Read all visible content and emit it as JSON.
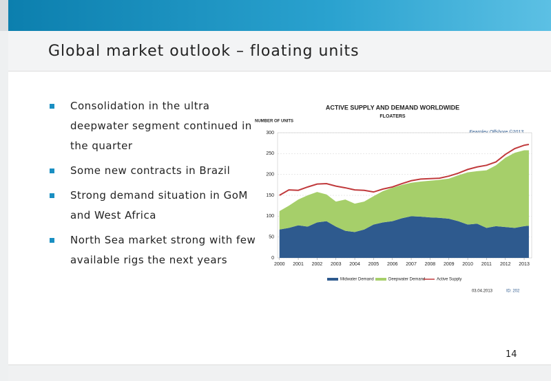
{
  "slide": {
    "title": "Global market outlook – floating units",
    "bullets": [
      "Consolidation in the ultra deepwater segment continued in the quarter",
      "Some new contracts in Brazil",
      "Strong demand situation in GoM and West Africa",
      "North Sea market strong with few available rigs the next years"
    ],
    "page_number": "14"
  },
  "chart_data": {
    "type": "stacked-area",
    "title": "ACTIVE SUPPLY AND DEMAND WORLDWIDE",
    "subtitle": "FLOATERS",
    "y_label": "NUMBER OF UNITS",
    "annotations": [
      "Fearnley Offshore ©2013",
      "03.04.2013",
      "ID: 202"
    ],
    "x": [
      2000,
      2000.5,
      2001,
      2001.5,
      2002,
      2002.5,
      2003,
      2003.5,
      2004,
      2004.5,
      2005,
      2005.5,
      2006,
      2006.5,
      2007,
      2007.5,
      2008,
      2008.5,
      2009,
      2009.5,
      2010,
      2010.5,
      2011,
      2011.5,
      2012,
      2012.5,
      2013,
      2013.25
    ],
    "series": [
      {
        "name": "Midwater Demand",
        "color": "#2e5a8e",
        "kind": "area",
        "values": [
          68,
          72,
          78,
          75,
          85,
          88,
          75,
          65,
          62,
          68,
          80,
          85,
          88,
          95,
          100,
          99,
          97,
          96,
          94,
          88,
          80,
          82,
          72,
          76,
          74,
          72,
          76,
          77
        ]
      },
      {
        "name": "Deepwater Demand",
        "color": "#a6cf6a",
        "kind": "area",
        "values": [
          44,
          53,
          62,
          75,
          73,
          64,
          60,
          75,
          68,
          67,
          68,
          75,
          80,
          80,
          80,
          84,
          88,
          91,
          96,
          110,
          125,
          126,
          138,
          146,
          166,
          180,
          182,
          181
        ]
      },
      {
        "name": "Active Supply",
        "color": "#c0393b",
        "kind": "line",
        "values": [
          150,
          163,
          162,
          170,
          177,
          178,
          172,
          168,
          163,
          162,
          158,
          165,
          170,
          178,
          185,
          189,
          190,
          191,
          196,
          203,
          212,
          218,
          222,
          230,
          248,
          262,
          270,
          272
        ]
      }
    ],
    "xlim": [
      1999.9,
      2013.4
    ],
    "xticks": [
      2000,
      2001,
      2002,
      2003,
      2004,
      2005,
      2006,
      2007,
      2008,
      2009,
      2010,
      2011,
      2012,
      2013
    ],
    "ylim": [
      0,
      300
    ],
    "yticks": [
      0,
      50,
      100,
      150,
      200,
      250,
      300
    ],
    "grid": true
  }
}
